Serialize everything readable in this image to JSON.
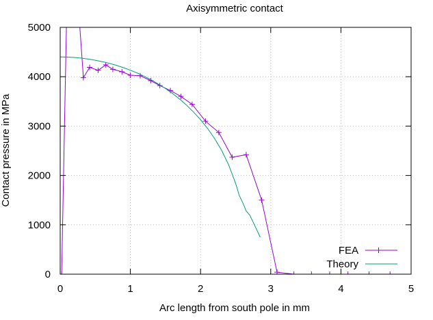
{
  "chart_data": {
    "type": "line",
    "title": "Axisymmetric contact",
    "xlabel": "Arc length from south pole in mm",
    "ylabel": "Contact pressure in MPa",
    "xlim": [
      0,
      5
    ],
    "ylim": [
      0,
      5000
    ],
    "xticks": [
      "0",
      "1",
      "2",
      "3",
      "4",
      "5"
    ],
    "yticks": [
      "0",
      "1000",
      "2000",
      "3000",
      "4000",
      "5000"
    ],
    "grid": true,
    "legend_position": "bottom-right",
    "series": [
      {
        "name": "FEA",
        "color": "#9400d3",
        "marker": "plus",
        "x": [
          0.02,
          0.09,
          0.27,
          0.33,
          0.42,
          0.54,
          0.65,
          0.75,
          0.88,
          1.0,
          1.14,
          1.29,
          1.42,
          1.57,
          1.72,
          1.88,
          2.07,
          2.26,
          2.45,
          2.65,
          2.87,
          3.09,
          3.33,
          3.58,
          3.84,
          4.1,
          4.4,
          4.7
        ],
        "y": [
          0,
          5100,
          5200,
          3980,
          4190,
          4130,
          4240,
          4150,
          4100,
          4030,
          4020,
          3920,
          3820,
          3720,
          3600,
          3440,
          3100,
          2870,
          2370,
          2420,
          1500,
          40,
          0,
          0,
          0,
          0,
          0,
          0
        ]
      },
      {
        "name": "Theory",
        "color": "#009e73",
        "marker": "none",
        "x": [
          0.0,
          0.1,
          0.2,
          0.3,
          0.4,
          0.5,
          0.6,
          0.7,
          0.8,
          0.9,
          1.0,
          1.1,
          1.2,
          1.3,
          1.4,
          1.5,
          1.6,
          1.7,
          1.8,
          1.9,
          2.0,
          2.1,
          2.2,
          2.3,
          2.4,
          2.5,
          2.55,
          2.6,
          2.65,
          2.7,
          2.75,
          2.8,
          2.85
        ],
        "y": [
          4400,
          4397,
          4390,
          4377,
          4358,
          4334,
          4305,
          4271,
          4231,
          4184,
          4132,
          4073,
          4007,
          3934,
          3852,
          3761,
          3660,
          3548,
          3424,
          3285,
          3129,
          2952,
          2748,
          2509,
          2218,
          1838,
          1600,
          1450,
          1280,
          1200,
          1050,
          900,
          750
        ]
      }
    ]
  }
}
